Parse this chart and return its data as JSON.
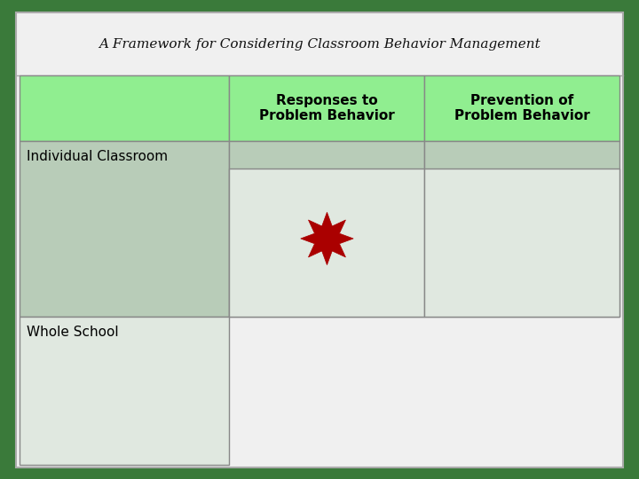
{
  "title": "A Framework for Considering Classroom Behavior Management",
  "title_fontsize": 11,
  "title_style": "italic",
  "title_family": "serif",
  "col_headers": [
    "Responses to\nProblem Behavior",
    "Prevention of\nProblem Behavior"
  ],
  "row_headers": [
    "Individual Classroom",
    "Whole School"
  ],
  "col_header_bg": "#90EE90",
  "row1_bg": "#B8CCB8",
  "row2_bg": "#E0E8E0",
  "outer_bg": "#3A7A3A",
  "title_area_bg": "#DCDCDC",
  "inner_bg": "#F0F0F0",
  "border_color": "#888888",
  "star_color": "#AA0000",
  "star_points": 8,
  "star_outer_r": 0.055,
  "star_inner_r": 0.028,
  "header_fontsize": 11,
  "row_header_fontsize": 11,
  "col_header_text_color": "#000000",
  "row_header_text_color": "#000000",
  "figsize": [
    7.2,
    5.4
  ],
  "dpi": 100
}
